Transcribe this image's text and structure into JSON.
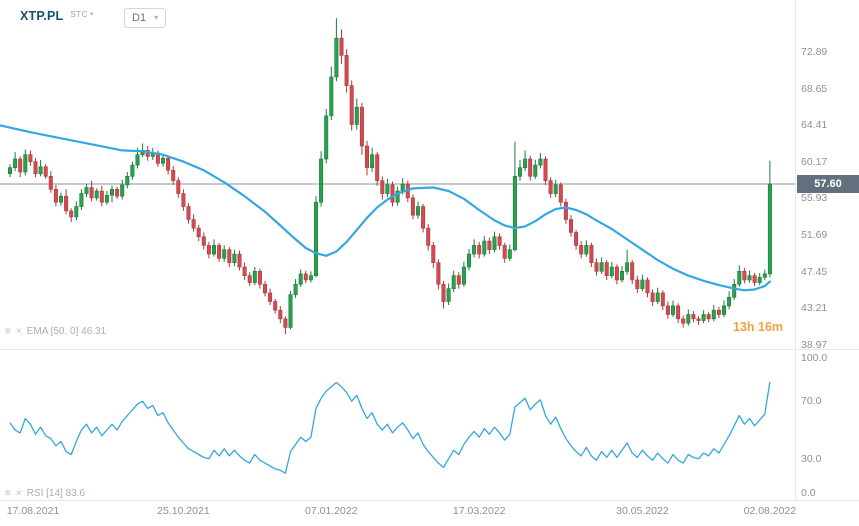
{
  "header": {
    "symbol": "XTP.PL",
    "exchange": "STC",
    "timeframe": "D1"
  },
  "icons": {
    "chevron_down": "▾",
    "settings": "≡",
    "close": "×"
  },
  "main_chart": {
    "ema_label": "EMA [50, 0] 46.31",
    "countdown": "13h 16m",
    "current_price_label": "57.60"
  },
  "rsi_panel": {
    "rsi_label": "RSI [14] 83.6"
  },
  "colors": {
    "up": "#29a14e",
    "up_border": "#1d7a3a",
    "down": "#d14b50",
    "down_border": "#a93b40",
    "line_blue": "#35a7e0",
    "grid": "#8f959b",
    "separator": "#e7e9eb",
    "badge_bg": "#61707c",
    "countdown": "#f0a23f"
  },
  "chart_data": {
    "type": "candlestick",
    "symbol": "XTP.PL",
    "timeframe": "D1",
    "current_price": 57.6,
    "price_axis_ticks": [
      "72.89",
      "68.65",
      "64.41",
      "60.17",
      "55.93",
      "51.69",
      "47.45",
      "43.21",
      "38.97"
    ],
    "time_axis": [
      {
        "label": "17.08.2021",
        "index": 0
      },
      {
        "label": "25.10.2021",
        "index": 34
      },
      {
        "label": "07.01.2022",
        "index": 63
      },
      {
        "label": "17.03.2022",
        "index": 92
      },
      {
        "label": "30.05.2022",
        "index": 124
      },
      {
        "label": "02.08.2022",
        "index": 149
      }
    ],
    "candles_ohlc": [
      [
        58.8,
        59.9,
        58.4,
        59.5
      ],
      [
        59.5,
        61.3,
        59.1,
        60.5
      ],
      [
        60.5,
        60.8,
        58.4,
        59.0
      ],
      [
        59.0,
        61.6,
        58.6,
        61.0
      ],
      [
        61.0,
        61.5,
        59.7,
        60.2
      ],
      [
        60.2,
        60.6,
        58.4,
        58.8
      ],
      [
        58.8,
        60.4,
        58.5,
        59.6
      ],
      [
        59.6,
        59.9,
        58.2,
        58.5
      ],
      [
        58.5,
        59.1,
        56.6,
        57.0
      ],
      [
        57.0,
        57.5,
        55.0,
        55.5
      ],
      [
        55.5,
        56.6,
        55.1,
        56.2
      ],
      [
        56.2,
        57.0,
        54.1,
        54.5
      ],
      [
        54.5,
        54.8,
        53.2,
        53.8
      ],
      [
        53.8,
        55.6,
        53.4,
        55.0
      ],
      [
        55.0,
        57.0,
        54.6,
        56.5
      ],
      [
        56.5,
        57.6,
        56.1,
        57.2
      ],
      [
        57.2,
        58.0,
        55.6,
        56.0
      ],
      [
        56.0,
        57.1,
        55.7,
        56.8
      ],
      [
        56.8,
        57.4,
        55.0,
        55.5
      ],
      [
        55.5,
        56.8,
        55.2,
        56.3
      ],
      [
        56.3,
        57.4,
        55.5,
        57.0
      ],
      [
        57.0,
        57.3,
        55.9,
        56.2
      ],
      [
        56.2,
        58.1,
        55.8,
        57.5
      ],
      [
        57.5,
        59.0,
        57.1,
        58.5
      ],
      [
        58.5,
        60.2,
        58.1,
        59.8
      ],
      [
        59.8,
        61.8,
        59.4,
        61.0
      ],
      [
        61.0,
        62.3,
        60.7,
        61.5
      ],
      [
        61.5,
        62.0,
        60.3,
        60.8
      ],
      [
        60.8,
        61.8,
        60.4,
        61.2
      ],
      [
        61.2,
        61.5,
        59.6,
        60.0
      ],
      [
        60.0,
        61.1,
        59.6,
        60.6
      ],
      [
        60.6,
        60.9,
        58.7,
        59.2
      ],
      [
        59.2,
        59.7,
        57.5,
        58.0
      ],
      [
        58.0,
        58.4,
        56.0,
        56.5
      ],
      [
        56.5,
        57.0,
        54.5,
        55.0
      ],
      [
        55.0,
        55.4,
        53.0,
        53.5
      ],
      [
        53.5,
        54.1,
        52.1,
        52.5
      ],
      [
        52.5,
        52.9,
        51.0,
        51.5
      ],
      [
        51.5,
        52.0,
        50.0,
        50.5
      ],
      [
        50.5,
        50.9,
        49.0,
        49.5
      ],
      [
        49.5,
        51.2,
        49.2,
        50.5
      ],
      [
        50.5,
        50.8,
        48.6,
        49.0
      ],
      [
        49.0,
        50.5,
        48.6,
        50.0
      ],
      [
        50.0,
        50.3,
        48.0,
        48.5
      ],
      [
        48.5,
        50.0,
        48.1,
        49.5
      ],
      [
        49.5,
        49.9,
        47.6,
        48.0
      ],
      [
        48.0,
        48.5,
        46.5,
        47.0
      ],
      [
        47.0,
        47.4,
        45.8,
        46.2
      ],
      [
        46.2,
        48.0,
        45.9,
        47.5
      ],
      [
        47.5,
        47.8,
        45.5,
        46.0
      ],
      [
        46.0,
        46.4,
        44.6,
        45.0
      ],
      [
        45.0,
        45.5,
        43.6,
        44.0
      ],
      [
        44.0,
        44.3,
        42.6,
        43.0
      ],
      [
        43.0,
        43.5,
        41.5,
        42.0
      ],
      [
        42.0,
        42.3,
        40.2,
        41.0
      ],
      [
        41.0,
        45.2,
        40.8,
        44.8
      ],
      [
        44.8,
        46.6,
        44.4,
        46.0
      ],
      [
        46.0,
        47.7,
        45.7,
        47.2
      ],
      [
        47.2,
        47.6,
        46.1,
        46.5
      ],
      [
        46.5,
        47.5,
        46.2,
        47.0
      ],
      [
        47.0,
        56.2,
        46.8,
        55.5
      ],
      [
        55.5,
        61.4,
        55.0,
        60.5
      ],
      [
        60.5,
        66.3,
        60.0,
        65.5
      ],
      [
        65.5,
        71.2,
        65.0,
        70.0
      ],
      [
        70.0,
        76.8,
        69.5,
        74.5
      ],
      [
        74.5,
        75.5,
        71.5,
        72.5
      ],
      [
        72.5,
        73.2,
        68.2,
        69.0
      ],
      [
        69.0,
        69.6,
        63.8,
        64.5
      ],
      [
        64.5,
        67.5,
        63.9,
        66.5
      ],
      [
        66.5,
        67.0,
        61.0,
        62.0
      ],
      [
        62.0,
        62.6,
        58.6,
        59.5
      ],
      [
        59.5,
        61.8,
        59.0,
        61.0
      ],
      [
        61.0,
        61.3,
        57.4,
        58.0
      ],
      [
        58.0,
        58.5,
        55.8,
        56.5
      ],
      [
        56.5,
        58.2,
        56.1,
        57.5
      ],
      [
        57.5,
        57.9,
        55.0,
        55.5
      ],
      [
        55.5,
        57.3,
        55.1,
        56.8
      ],
      [
        56.8,
        58.3,
        56.4,
        57.6
      ],
      [
        57.6,
        58.0,
        55.5,
        56.0
      ],
      [
        56.0,
        56.4,
        53.5,
        54.0
      ],
      [
        54.0,
        55.6,
        53.6,
        55.0
      ],
      [
        55.0,
        55.3,
        52.0,
        52.5
      ],
      [
        52.5,
        53.0,
        49.9,
        50.5
      ],
      [
        50.5,
        50.9,
        47.9,
        48.5
      ],
      [
        48.5,
        48.9,
        45.4,
        46.0
      ],
      [
        46.0,
        46.4,
        43.2,
        44.0
      ],
      [
        44.0,
        46.1,
        43.6,
        45.5
      ],
      [
        45.5,
        47.6,
        45.1,
        47.0
      ],
      [
        47.0,
        47.4,
        45.5,
        46.0
      ],
      [
        46.0,
        48.6,
        45.7,
        48.0
      ],
      [
        48.0,
        50.1,
        47.6,
        49.5
      ],
      [
        49.5,
        51.2,
        49.1,
        50.5
      ],
      [
        50.5,
        50.9,
        49.0,
        49.5
      ],
      [
        49.5,
        51.6,
        49.2,
        51.0
      ],
      [
        51.0,
        51.4,
        49.5,
        50.0
      ],
      [
        50.0,
        52.1,
        49.7,
        51.5
      ],
      [
        51.5,
        51.9,
        50.0,
        50.5
      ],
      [
        50.5,
        50.8,
        48.5,
        49.0
      ],
      [
        49.0,
        50.6,
        48.7,
        50.0
      ],
      [
        50.0,
        62.5,
        49.8,
        58.5
      ],
      [
        58.5,
        60.4,
        58.0,
        59.5
      ],
      [
        59.5,
        61.5,
        59.1,
        60.5
      ],
      [
        60.5,
        60.9,
        58.0,
        58.5
      ],
      [
        58.5,
        60.4,
        58.2,
        59.8
      ],
      [
        59.8,
        61.2,
        59.4,
        60.5
      ],
      [
        60.5,
        60.8,
        57.5,
        58.0
      ],
      [
        58.0,
        58.4,
        56.0,
        56.5
      ],
      [
        56.5,
        58.1,
        56.1,
        57.5
      ],
      [
        57.5,
        57.8,
        55.0,
        55.5
      ],
      [
        55.5,
        55.9,
        53.0,
        53.5
      ],
      [
        53.5,
        54.0,
        51.5,
        52.0
      ],
      [
        52.0,
        52.3,
        50.0,
        50.5
      ],
      [
        50.5,
        51.0,
        49.0,
        49.5
      ],
      [
        49.5,
        51.1,
        49.2,
        50.5
      ],
      [
        50.5,
        50.8,
        48.0,
        48.5
      ],
      [
        48.5,
        49.0,
        47.0,
        47.5
      ],
      [
        47.5,
        49.1,
        47.2,
        48.5
      ],
      [
        48.5,
        48.8,
        46.5,
        47.0
      ],
      [
        47.0,
        48.6,
        46.7,
        48.0
      ],
      [
        48.0,
        48.3,
        46.0,
        46.5
      ],
      [
        46.5,
        48.1,
        46.2,
        47.5
      ],
      [
        47.5,
        50.0,
        47.1,
        48.5
      ],
      [
        48.5,
        48.8,
        46.0,
        46.5
      ],
      [
        46.5,
        47.0,
        45.0,
        45.5
      ],
      [
        45.5,
        47.1,
        45.2,
        46.5
      ],
      [
        46.5,
        46.8,
        44.5,
        45.0
      ],
      [
        45.0,
        45.4,
        43.5,
        44.0
      ],
      [
        44.0,
        45.6,
        43.7,
        45.0
      ],
      [
        45.0,
        45.3,
        43.0,
        43.5
      ],
      [
        43.5,
        44.0,
        42.0,
        42.5
      ],
      [
        42.5,
        44.1,
        42.2,
        43.5
      ],
      [
        43.5,
        43.8,
        41.5,
        42.0
      ],
      [
        42.0,
        42.4,
        41.0,
        41.5
      ],
      [
        41.5,
        43.1,
        41.2,
        42.5
      ],
      [
        42.5,
        42.9,
        41.6,
        42.0
      ],
      [
        42.0,
        42.3,
        41.3,
        41.8
      ],
      [
        41.8,
        43.0,
        41.5,
        42.5
      ],
      [
        42.5,
        42.8,
        41.6,
        42.0
      ],
      [
        42.0,
        43.6,
        41.7,
        43.0
      ],
      [
        43.0,
        43.4,
        42.1,
        42.5
      ],
      [
        42.5,
        44.1,
        42.2,
        43.5
      ],
      [
        43.5,
        45.2,
        43.1,
        44.5
      ],
      [
        44.5,
        46.6,
        44.2,
        46.0
      ],
      [
        46.0,
        48.2,
        45.7,
        47.5
      ],
      [
        47.5,
        47.9,
        46.1,
        46.5
      ],
      [
        46.5,
        47.6,
        46.2,
        47.0
      ],
      [
        47.0,
        47.3,
        45.8,
        46.2
      ],
      [
        46.2,
        47.3,
        45.9,
        46.8
      ],
      [
        46.8,
        47.7,
        46.5,
        47.2
      ],
      [
        47.2,
        60.3,
        46.8,
        57.6
      ]
    ],
    "ema_50": {
      "period_label": "EMA [50, 0]",
      "current_value": 46.31,
      "points": [
        [
          -2,
          64.4
        ],
        [
          4,
          63.6
        ],
        [
          10,
          62.9
        ],
        [
          16,
          62.2
        ],
        [
          22,
          61.5
        ],
        [
          26,
          61.4
        ],
        [
          30,
          61.0
        ],
        [
          34,
          60.2
        ],
        [
          38,
          59.2
        ],
        [
          42,
          57.8
        ],
        [
          46,
          56.2
        ],
        [
          50,
          54.4
        ],
        [
          53,
          52.8
        ],
        [
          56,
          51.2
        ],
        [
          58,
          50.2
        ],
        [
          60,
          49.6
        ],
        [
          62,
          49.3
        ],
        [
          64,
          49.8
        ],
        [
          66,
          50.9
        ],
        [
          68,
          52.3
        ],
        [
          70,
          53.7
        ],
        [
          72,
          54.9
        ],
        [
          74,
          55.8
        ],
        [
          76,
          56.5
        ],
        [
          79,
          57.1
        ],
        [
          83,
          57.2
        ],
        [
          86,
          56.8
        ],
        [
          89,
          55.9
        ],
        [
          92,
          54.6
        ],
        [
          95,
          53.4
        ],
        [
          97,
          52.8
        ],
        [
          99,
          52.5
        ],
        [
          101,
          52.7
        ],
        [
          103,
          53.3
        ],
        [
          105,
          54.1
        ],
        [
          107,
          54.7
        ],
        [
          109,
          54.9
        ],
        [
          111,
          54.6
        ],
        [
          113,
          54.1
        ],
        [
          115,
          53.4
        ],
        [
          118,
          52.4
        ],
        [
          121,
          51.2
        ],
        [
          124,
          50.0
        ],
        [
          127,
          48.8
        ],
        [
          130,
          47.8
        ],
        [
          133,
          47.0
        ],
        [
          136,
          46.4
        ],
        [
          139,
          45.9
        ],
        [
          142,
          45.5
        ],
        [
          144,
          45.3
        ],
        [
          146,
          45.4
        ],
        [
          148,
          45.8
        ],
        [
          149,
          46.31
        ]
      ]
    },
    "rsi_14": {
      "period_label": "RSI [14]",
      "current_value": 83.6,
      "axis_ticks": [
        "100.0",
        "70.0",
        "30.0",
        "0.0"
      ],
      "values": [
        55,
        50,
        48,
        58,
        54,
        47,
        52,
        46,
        44,
        39,
        42,
        35,
        33,
        42,
        50,
        54,
        48,
        52,
        46,
        50,
        54,
        50,
        56,
        60,
        64,
        68,
        70,
        65,
        67,
        60,
        62,
        55,
        50,
        45,
        41,
        37,
        35,
        33,
        31,
        30,
        36,
        32,
        37,
        32,
        36,
        32,
        29,
        27,
        33,
        29,
        27,
        25,
        23,
        22,
        20,
        35,
        40,
        45,
        42,
        45,
        65,
        72,
        77,
        80,
        83,
        80,
        76,
        70,
        74,
        65,
        58,
        62,
        54,
        50,
        54,
        48,
        52,
        55,
        50,
        44,
        48,
        40,
        35,
        31,
        27,
        24,
        30,
        36,
        33,
        40,
        45,
        49,
        45,
        51,
        47,
        52,
        48,
        43,
        47,
        66,
        69,
        72,
        64,
        68,
        71,
        60,
        54,
        59,
        51,
        44,
        39,
        35,
        32,
        38,
        32,
        29,
        35,
        31,
        36,
        31,
        36,
        41,
        34,
        31,
        36,
        32,
        29,
        34,
        30,
        27,
        33,
        29,
        27,
        33,
        31,
        30,
        34,
        32,
        37,
        34,
        40,
        46,
        53,
        60,
        54,
        58,
        53,
        57,
        61,
        83.6
      ]
    }
  }
}
